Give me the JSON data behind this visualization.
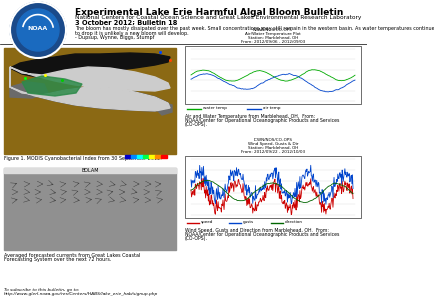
{
  "title": "Experimental Lake Erie Harmful Algal Bloom Bulletin",
  "subtitle1": "National Centers for Coastal Ocean Science and Great Lakes Environmental Research Laboratory",
  "subtitle2": "3 October 2012; Bulletin 18",
  "body_line1": "The bloom has mostly dissipated over the past week. Small concentrations may still remain in the western basin. As water temperatures continue",
  "body_line2": "to drop it is unlikely a new bloom will develop.",
  "body_line3": "- Dupsup, Wynne, Biggs, Stumpf",
  "fig1_caption": "Figure 1. MODIS Cyanobacterial Index from 30 September 2012.",
  "fig2_caption_l1": "Averaged forecasted currents from Great Lakes Coastal",
  "fig2_caption_l2": "Forecasting System over the next 72 hours.",
  "fig3_caption_l1": "Air and Water Temperature from Marblehead, OH.  From:",
  "fig3_caption_l2": "NOAA/Center for Operational Oceanographic Products and Services",
  "fig3_caption_l3": "(CO-OPS).",
  "fig4_caption_l1": "Wind Speed, Gusts and Direction from Marblehead, OH.  From:",
  "fig4_caption_l2": "NOAA/Center for Operational Oceanographic Products and Services",
  "fig4_caption_l3": "(CO-OPS).",
  "subscribe_l1": "To subscribe to this bulletin, go to:",
  "subscribe_l2": "http://www.glerl.noaa.gov/res/Centers/HABS/lake_erie_hab/signup.php",
  "chart1_l1": "NOAA/NOS/CO-OPS",
  "chart1_l2": "Air/Water Temperature Plot",
  "chart1_l3": "Station: Marblehead, OH",
  "chart1_l4": "From: 2012/09/06 - 2012/09/03",
  "chart2_l1": "ICWN/NOS/CO-OPS",
  "chart2_l2": "Wind Speed, Gusts & Dir",
  "chart2_l3": "Station: Marblehead, OH",
  "chart2_l4": "From: 2012/09/22 - 2012/10/03",
  "bg_color": "#ffffff",
  "map1_bg": "#8B6914",
  "noaa_outer": "#1a4a8a",
  "noaa_inner": "#1a6abf",
  "water_temp_color": "#00aa00",
  "air_temp_color": "#0044cc",
  "wind_speed_color": "#cc0000",
  "wind_gust_color": "#0044cc",
  "wind_dir_color": "#006600"
}
